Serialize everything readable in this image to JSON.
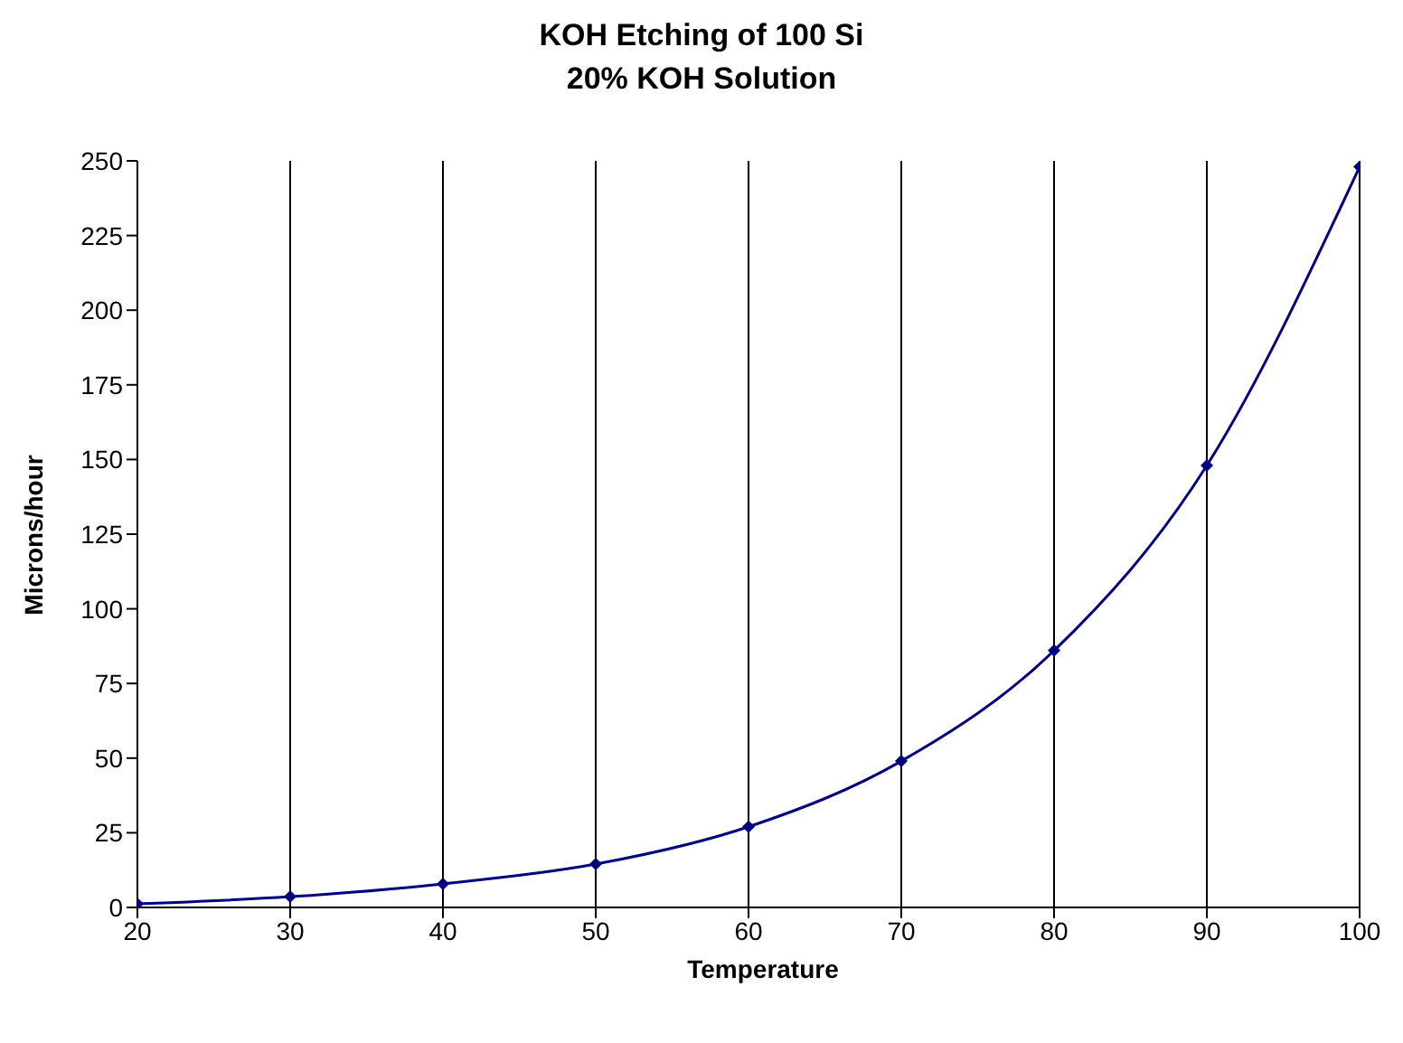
{
  "chart_data": {
    "type": "line",
    "title": "KOH Etching of 100 Si",
    "subtitle": "20% KOH Solution",
    "xlabel": "Temperature",
    "ylabel": "Microns/hour",
    "x": [
      20,
      30,
      40,
      50,
      60,
      70,
      80,
      90,
      100
    ],
    "series": [
      {
        "color": "#000080",
        "values": [
          1.2,
          3.6,
          7.9,
          14.5,
          27,
          49,
          86,
          148,
          248
        ]
      }
    ],
    "xlim": [
      20,
      100
    ],
    "xticks": [
      20,
      30,
      40,
      50,
      60,
      70,
      80,
      90,
      100
    ],
    "ylim": [
      0,
      250
    ],
    "yticks": [
      0,
      25,
      50,
      75,
      100,
      125,
      150,
      175,
      200,
      225,
      250
    ],
    "grid": "x",
    "marker": "diamond",
    "line_style": "solid",
    "legend": false
  }
}
